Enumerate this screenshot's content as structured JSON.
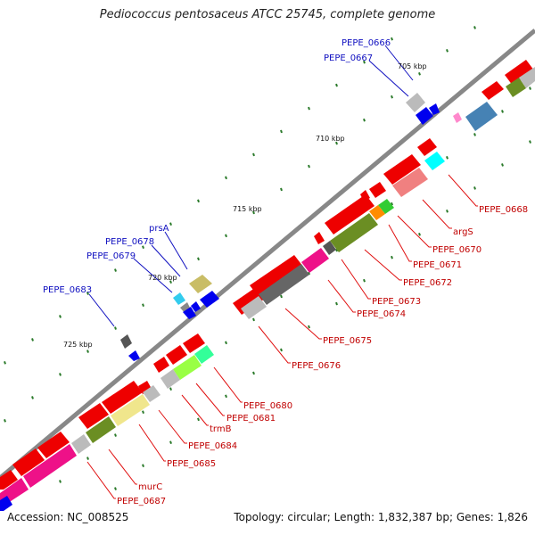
{
  "title": "Pediococcus pentosaceus ATCC 25745, complete genome",
  "footer": {
    "accession": "Accession: NC_008525",
    "summary": "Topology: circular; Length: 1,832,387 bp; Genes: 1,826"
  },
  "scale_ticks": [
    {
      "label": "705 kbp"
    },
    {
      "label": "710 kbp"
    },
    {
      "label": "715 kbp"
    },
    {
      "label": "720 kbp"
    },
    {
      "label": "725 kbp"
    }
  ],
  "gene_labels_outer": [
    {
      "name": "PEPE_0666"
    },
    {
      "name": "PEPE_0667"
    },
    {
      "name": "prsA"
    },
    {
      "name": "PEPE_0678"
    },
    {
      "name": "PEPE_0679"
    },
    {
      "name": "PEPE_0683"
    }
  ],
  "gene_labels_inner": [
    {
      "name": "PEPE_0668"
    },
    {
      "name": "argS"
    },
    {
      "name": "PEPE_0670"
    },
    {
      "name": "PEPE_0671"
    },
    {
      "name": "PEPE_0672"
    },
    {
      "name": "PEPE_0673"
    },
    {
      "name": "PEPE_0674"
    },
    {
      "name": "PEPE_0675"
    },
    {
      "name": "PEPE_0676"
    },
    {
      "name": "PEPE_0680"
    },
    {
      "name": "PEPE_0681"
    },
    {
      "name": "trmB"
    },
    {
      "name": "PEPE_0684"
    },
    {
      "name": "PEPE_0685"
    },
    {
      "name": "murC"
    },
    {
      "name": "PEPE_0687"
    }
  ],
  "colors": {
    "backbone": "#888888",
    "label_outer": "#1010c0",
    "label_inner": "#c00000",
    "tick_dot": "#2a7a2a",
    "cds_red": "#ee0000",
    "grey": "#bbbbbb",
    "dark_grey": "#666666",
    "blue": "#0000ee",
    "pink": "#ee1188",
    "olive": "#6b8e23",
    "khaki": "#f0e68c",
    "cyan": "#00ffff",
    "steel": "#4682b4",
    "orange": "#ff8c00",
    "green": "#33cc33",
    "salmon": "#f08080",
    "lime": "#99ff44",
    "mint": "#33ff99"
  }
}
